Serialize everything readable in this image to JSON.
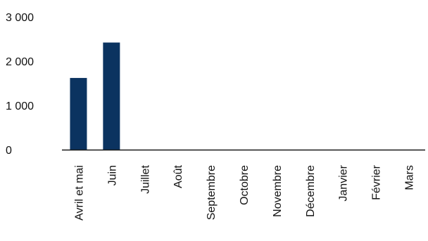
{
  "chart_data": {
    "type": "bar",
    "title": "",
    "xlabel": "",
    "ylabel": "",
    "categories": [
      "Avril et mai",
      "Juin",
      "Juillet",
      "Août",
      "Septembre",
      "Octobre",
      "Novembre",
      "Décembre",
      "Janvier",
      "Février",
      "Mars"
    ],
    "series": [
      {
        "values": [
          1620,
          2420,
          null,
          null,
          null,
          null,
          null,
          null,
          null,
          null,
          null
        ]
      }
    ],
    "ylim": [
      0,
      3000
    ],
    "yticks": [
      0,
      1000,
      2000,
      3000
    ],
    "ytick_labels": [
      "0",
      "1 000",
      "2 000",
      "3 000"
    ],
    "grid": false,
    "legend": "none",
    "colors": {
      "bar": "#0b3360",
      "axis": "#1a1a1a",
      "text": "#111111"
    }
  }
}
